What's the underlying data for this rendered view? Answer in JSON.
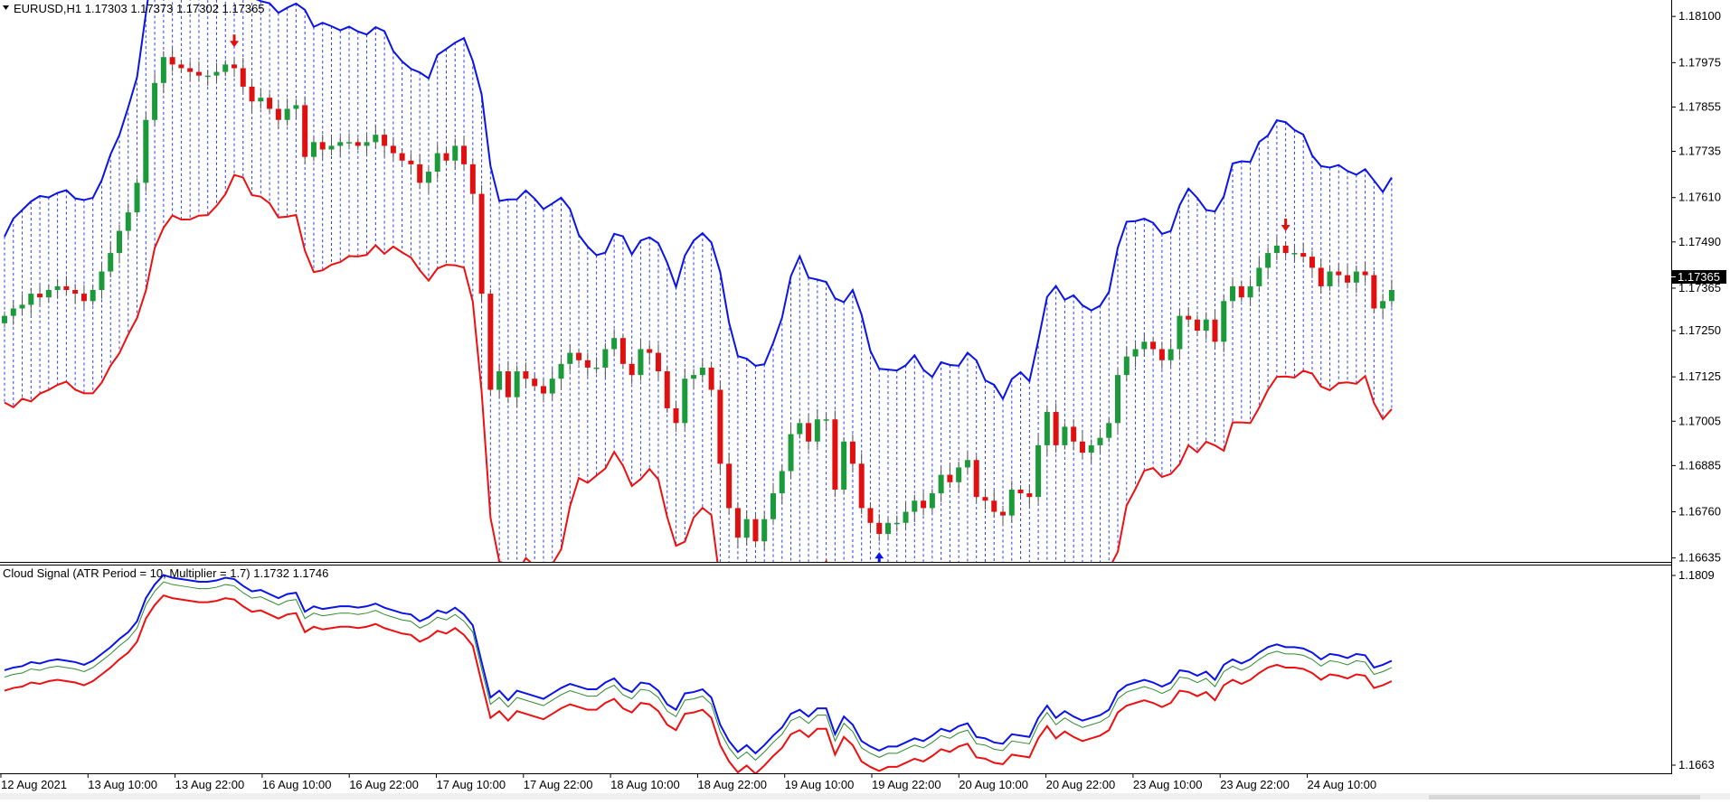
{
  "window": {
    "symbol_label": "EURUSD,H1  1.17303 1.17373 1.17302 1.17365",
    "current_price": "1.17365",
    "indicator_label": "Cloud Signal (ATR Period = 10, Multiplier = 1.7) 1.1732 1.1746",
    "dropdown_icon": "triangle-down-icon"
  },
  "colors": {
    "bull": "#1a9a3a",
    "bear": "#e01010",
    "upper": "#0a14e6",
    "lower": "#ee1010",
    "cloud_dots": "#2a3cf0",
    "indicator_green": "#2e8b2e",
    "price_box_bg": "#000000"
  },
  "chart_data": [
    {
      "type": "candlestick",
      "name": "EURUSD,H1",
      "y_ticks": [
        "1.18100",
        "1.17975",
        "1.17855",
        "1.17735",
        "1.17610",
        "1.17490",
        "1.17365",
        "1.17250",
        "1.17125",
        "1.17005",
        "1.16885",
        "1.16760",
        "1.16635"
      ],
      "ylim": [
        1.166,
        1.1812
      ],
      "x_labels": [
        "12 Aug 2021",
        "13 Aug 10:00",
        "13 Aug 22:00",
        "16 Aug 10:00",
        "16 Aug 22:00",
        "17 Aug 10:00",
        "17 Aug 22:00",
        "18 Aug 10:00",
        "18 Aug 22:00",
        "19 Aug 10:00",
        "19 Aug 22:00",
        "20 Aug 10:00",
        "20 Aug 22:00",
        "23 Aug 10:00",
        "23 Aug 22:00",
        "24 Aug 10:00"
      ],
      "close": [
        1.1729,
        1.1731,
        1.1732,
        1.1735,
        1.1734,
        1.1736,
        1.1737,
        1.1736,
        1.1735,
        1.1733,
        1.1736,
        1.1741,
        1.1746,
        1.1752,
        1.1757,
        1.1765,
        1.1782,
        1.1792,
        1.1799,
        1.1797,
        1.1796,
        1.1795,
        1.1794,
        1.1794,
        1.1795,
        1.1797,
        1.1796,
        1.1791,
        1.1787,
        1.1788,
        1.1785,
        1.1782,
        1.1785,
        1.1786,
        1.1772,
        1.1776,
        1.1774,
        1.1775,
        1.1776,
        1.1776,
        1.1775,
        1.1776,
        1.1778,
        1.1775,
        1.1773,
        1.1771,
        1.177,
        1.1765,
        1.1768,
        1.1773,
        1.1771,
        1.1775,
        1.177,
        1.1762,
        1.1735,
        1.1709,
        1.1714,
        1.1707,
        1.1714,
        1.1712,
        1.171,
        1.1708,
        1.1712,
        1.1716,
        1.1719,
        1.1717,
        1.1715,
        1.1715,
        1.172,
        1.1723,
        1.1716,
        1.1713,
        1.172,
        1.1719,
        1.1714,
        1.1704,
        1.17,
        1.1712,
        1.1713,
        1.1715,
        1.1709,
        1.1689,
        1.1677,
        1.1669,
        1.1674,
        1.1668,
        1.1674,
        1.1681,
        1.1687,
        1.1697,
        1.17,
        1.1695,
        1.1701,
        1.1701,
        1.1682,
        1.1695,
        1.1689,
        1.1677,
        1.1673,
        1.167,
        1.1673,
        1.1673,
        1.1676,
        1.1679,
        1.1677,
        1.1681,
        1.1686,
        1.1684,
        1.1688,
        1.169,
        1.168,
        1.1679,
        1.1676,
        1.1675,
        1.1682,
        1.1681,
        1.168,
        1.1694,
        1.1703,
        1.1694,
        1.1699,
        1.1695,
        1.1692,
        1.1694,
        1.1696,
        1.17,
        1.1713,
        1.1718,
        1.172,
        1.1722,
        1.172,
        1.1717,
        1.172,
        1.1729,
        1.1728,
        1.1725,
        1.1728,
        1.1722,
        1.1733,
        1.1737,
        1.1734,
        1.1737,
        1.1742,
        1.1746,
        1.1748,
        1.1746,
        1.1746,
        1.1745,
        1.1742,
        1.1737,
        1.1741,
        1.174,
        1.1738,
        1.1741,
        1.174,
        1.1731,
        1.1733,
        1.1736
      ]
    },
    {
      "type": "line",
      "name": "Cloud Signal",
      "y_ticks": [
        "1.1809",
        "1.1663"
      ],
      "ylim": [
        1.166,
        1.1812
      ]
    }
  ]
}
